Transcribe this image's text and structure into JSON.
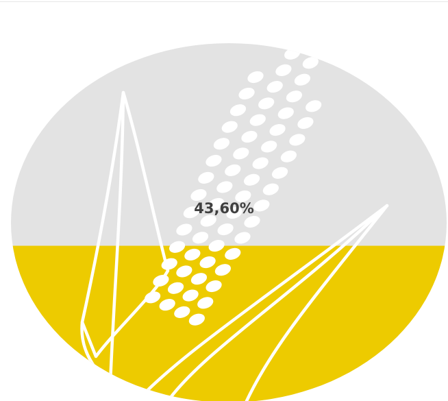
{
  "chart_data": {
    "type": "area",
    "fill_fraction": 0.436,
    "label": "43,60%",
    "colors": {
      "fill": "#edcb00",
      "empty": "#e3e3e3",
      "motif": "#ffffff"
    },
    "motif_icon": "corn-icon"
  }
}
